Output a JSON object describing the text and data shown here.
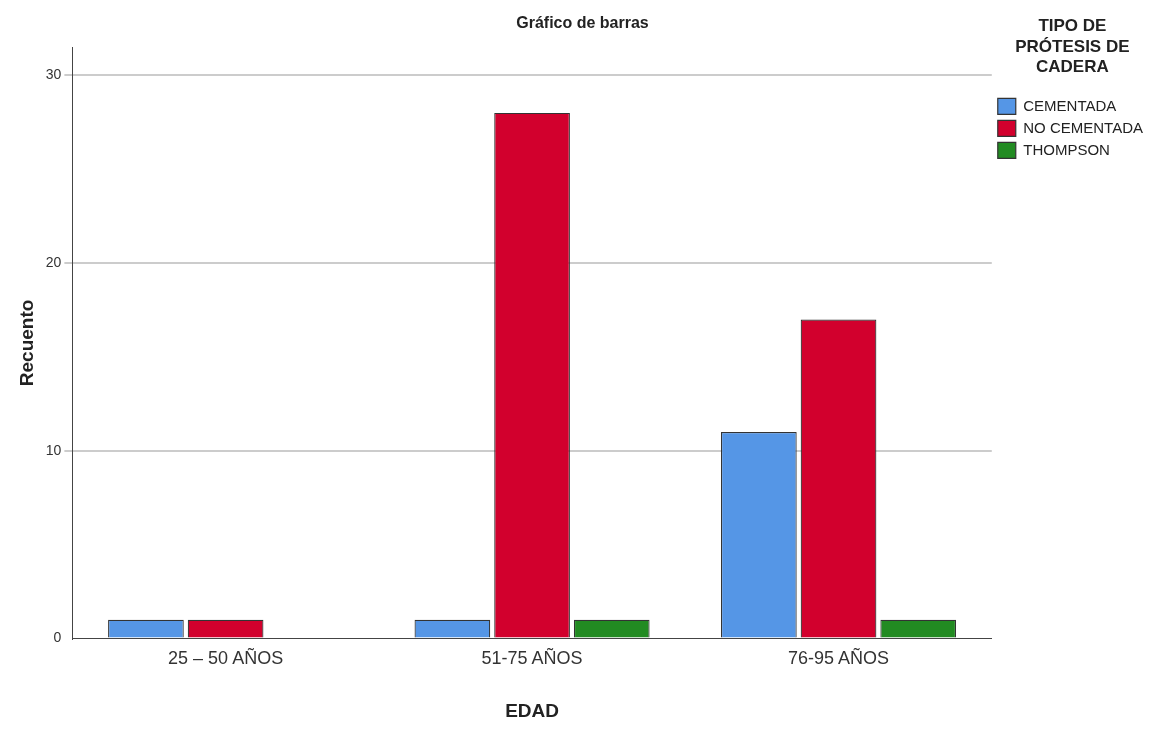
{
  "chart_data": {
    "type": "bar",
    "title": "Gráfico de barras",
    "xlabel": "EDAD",
    "ylabel": "Recuento",
    "categories": [
      "25 – 50 AÑOS",
      "51-75 AÑOS",
      "76-95 AÑOS"
    ],
    "series": [
      {
        "name": "CEMENTADA",
        "color": "#5596e6",
        "values": [
          1,
          1,
          11
        ]
      },
      {
        "name": "NO CEMENTADA",
        "color": "#d2002d",
        "values": [
          1,
          28,
          17
        ]
      },
      {
        "name": "THOMPSON",
        "color": "#228b22",
        "values": [
          null,
          1,
          1
        ]
      }
    ],
    "legend_title": "TIPO DE PRÓTESIS DE CADERA",
    "legend": "top right",
    "ylim": [
      0,
      31.5
    ],
    "yticks": [
      0,
      10,
      20,
      30
    ],
    "grid": "y"
  }
}
